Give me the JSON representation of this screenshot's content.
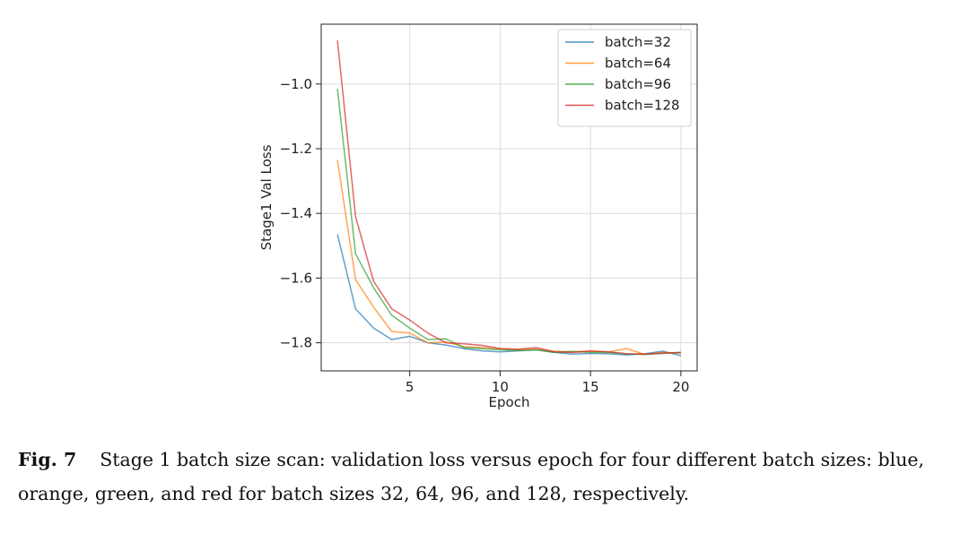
{
  "chart_data": {
    "type": "line",
    "title": "",
    "xlabel": "Epoch",
    "ylabel": "Stage1 Val Loss",
    "xlim": [
      0.1,
      20.9
    ],
    "ylim": [
      -1.887,
      -0.815
    ],
    "xticks": [
      5,
      10,
      15,
      20
    ],
    "xtick_labels": [
      "5",
      "10",
      "15",
      "20"
    ],
    "yticks": [
      -1.8,
      -1.6,
      -1.4,
      -1.2,
      -1.0
    ],
    "ytick_labels": [
      "−1.8",
      "−1.6",
      "−1.4",
      "−1.2",
      "−1.0"
    ],
    "grid": true,
    "legend_position": "top-right",
    "x": [
      1,
      2,
      3,
      4,
      5,
      6,
      7,
      8,
      9,
      10,
      11,
      12,
      13,
      14,
      15,
      16,
      17,
      18,
      19,
      20
    ],
    "series": [
      {
        "name": "batch=32",
        "color": "#1f77b4",
        "values": [
          -1.465,
          -1.695,
          -1.755,
          -1.79,
          -1.78,
          -1.8,
          -1.807,
          -1.818,
          -1.825,
          -1.828,
          -1.825,
          -1.822,
          -1.83,
          -1.835,
          -1.833,
          -1.834,
          -1.838,
          -1.834,
          -1.826,
          -1.84
        ]
      },
      {
        "name": "batch=64",
        "color": "#ff7f0e",
        "values": [
          -1.235,
          -1.605,
          -1.69,
          -1.765,
          -1.77,
          -1.8,
          -1.798,
          -1.812,
          -1.815,
          -1.818,
          -1.822,
          -1.82,
          -1.826,
          -1.828,
          -1.825,
          -1.828,
          -1.818,
          -1.836,
          -1.83,
          -1.832
        ]
      },
      {
        "name": "batch=96",
        "color": "#2ca02c",
        "values": [
          -1.015,
          -1.525,
          -1.63,
          -1.715,
          -1.755,
          -1.79,
          -1.788,
          -1.815,
          -1.818,
          -1.822,
          -1.824,
          -1.822,
          -1.83,
          -1.827,
          -1.83,
          -1.83,
          -1.834,
          -1.836,
          -1.833,
          -1.83
        ]
      },
      {
        "name": "batch=128",
        "color": "#d62728",
        "values": [
          -0.865,
          -1.41,
          -1.61,
          -1.695,
          -1.73,
          -1.77,
          -1.8,
          -1.803,
          -1.808,
          -1.818,
          -1.82,
          -1.815,
          -1.828,
          -1.83,
          -1.826,
          -1.828,
          -1.834,
          -1.835,
          -1.832,
          -1.83
        ]
      }
    ]
  },
  "caption": {
    "label": "Fig. 7",
    "text": "Stage 1 batch size scan: validation loss versus epoch for four different batch sizes: blue, orange, green, and red for batch sizes 32, 64, 96, and 128, respectively."
  }
}
